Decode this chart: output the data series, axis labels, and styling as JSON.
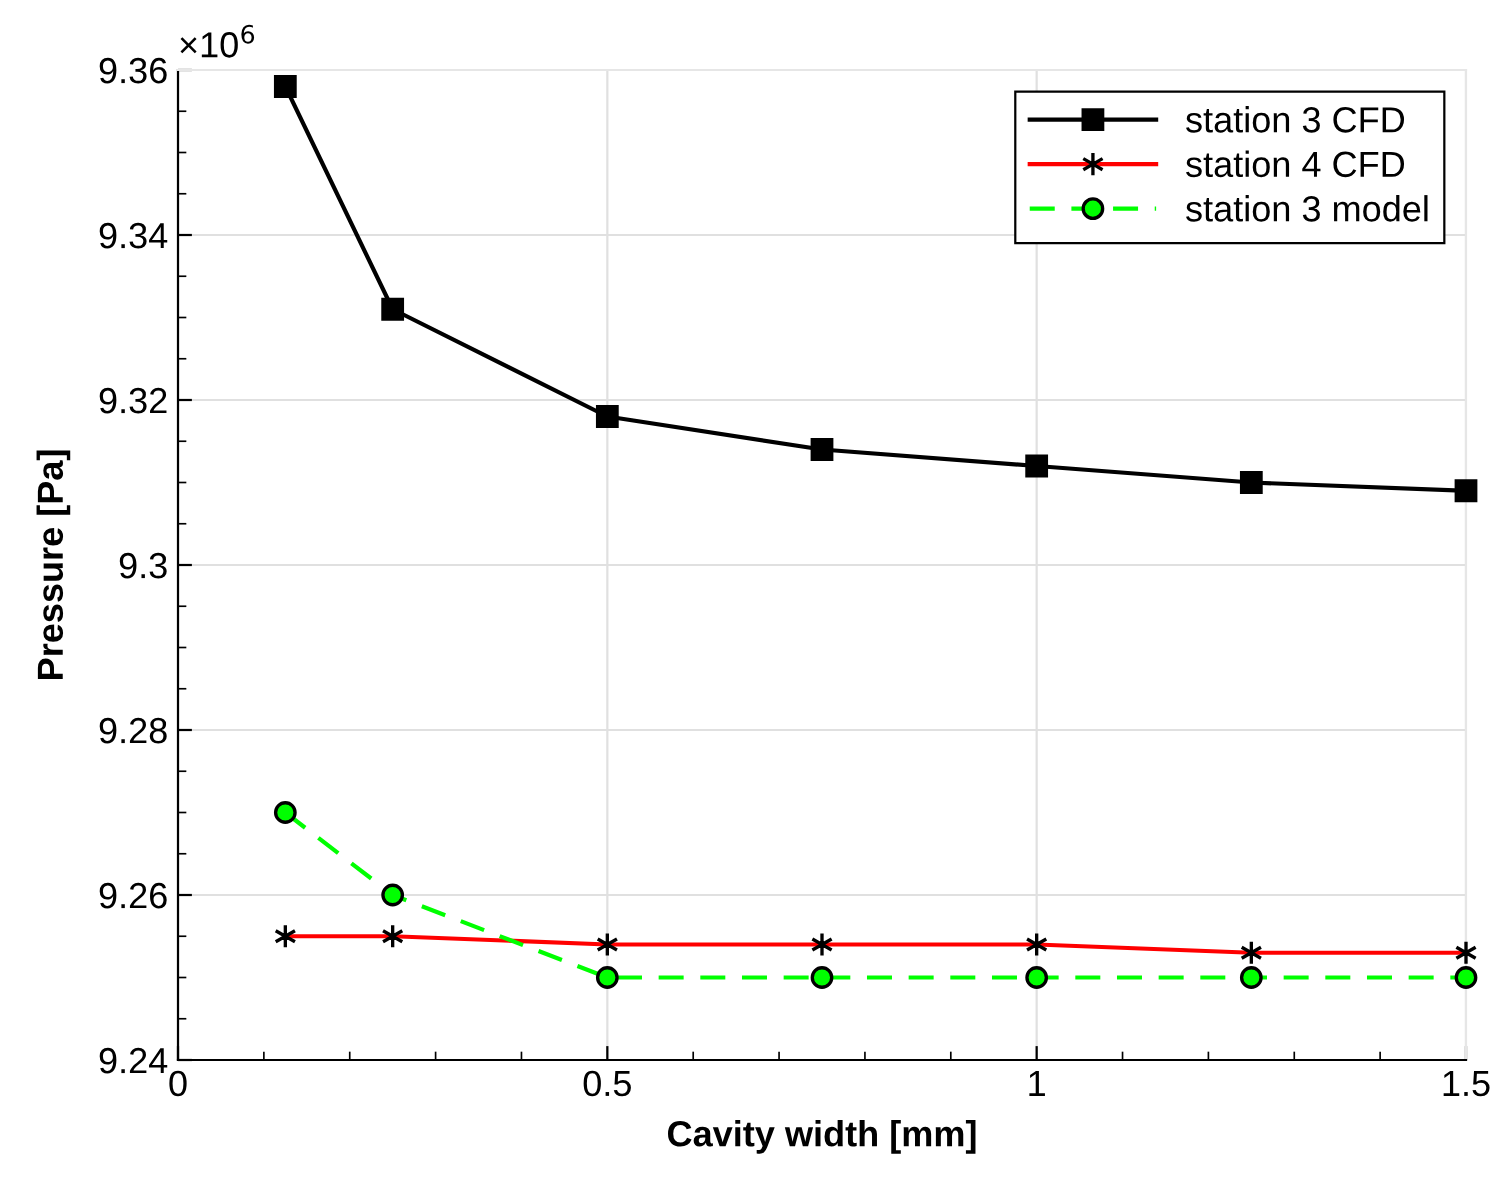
{
  "chart_data": {
    "type": "line",
    "xlabel": "Cavity width [mm]",
    "ylabel": "Pressure [Pa]",
    "annotations": [
      "×10$^{6}$"
    ],
    "x": [
      0.125,
      0.25,
      0.5,
      0.75,
      1,
      1.25,
      1.5
    ],
    "series": [
      {
        "name": "station 3 CFD",
        "color": "#000000",
        "marker": "square",
        "line_style": "solid",
        "values": [
          9.358,
          9.331,
          9.318,
          9.314,
          9.312,
          9.31,
          9.309
        ]
      },
      {
        "name": "station 4 CFD",
        "color": "#ff0000",
        "marker": "cross",
        "line_style": "solid",
        "values": [
          9.255,
          9.255,
          9.254,
          9.254,
          9.254,
          9.253,
          9.253
        ]
      },
      {
        "name": "station 3 model",
        "color": "#00ff00",
        "marker": "circle",
        "line_style": "dashed",
        "values": [
          9.27,
          9.26,
          9.25,
          9.25,
          9.25,
          9.25,
          9.25
        ]
      }
    ],
    "xlim": [
      0,
      1.5
    ],
    "xticks": [
      0,
      0.5,
      1,
      1.5
    ],
    "ylim": [
      9.24,
      9.36
    ],
    "yticks": [
      9.24,
      9.26,
      9.28,
      9.3,
      9.32,
      9.34,
      9.36
    ],
    "grid": true,
    "legend": "top right"
  }
}
